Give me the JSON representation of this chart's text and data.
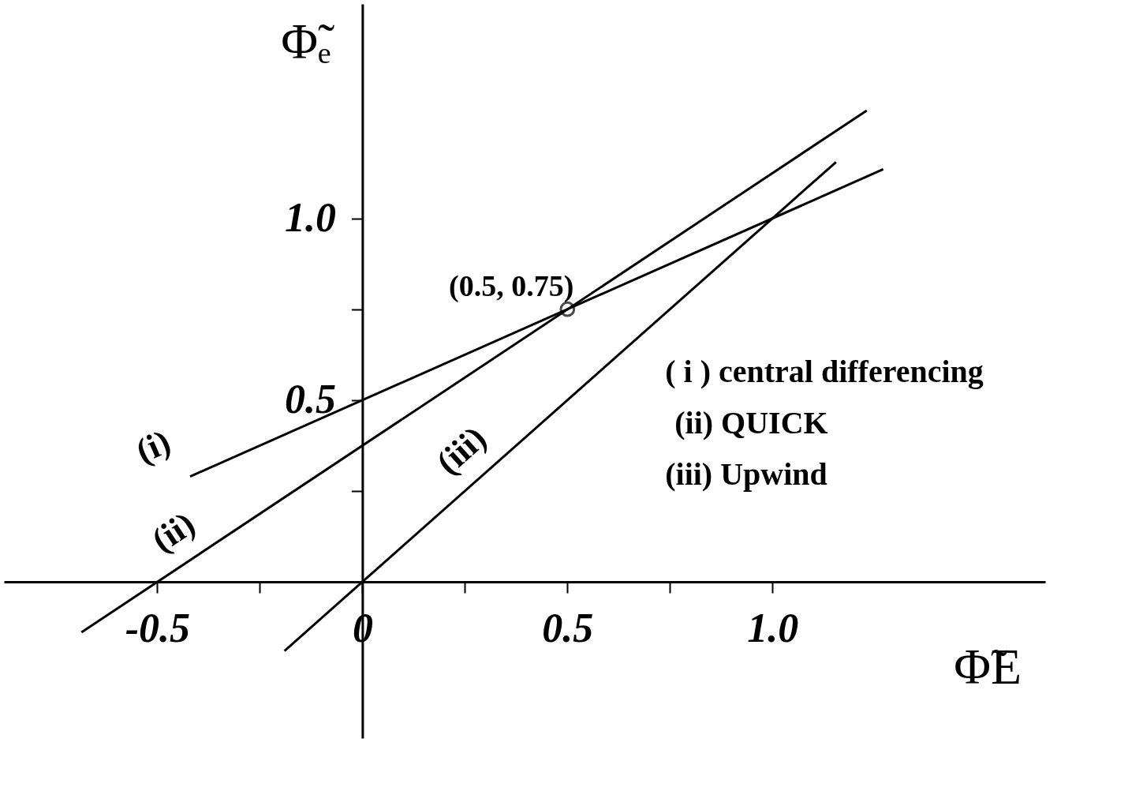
{
  "chart_data": {
    "type": "line",
    "xlabel": "Φ̃E",
    "ylabel": "Φ̃ₑ",
    "xlim": [
      -0.874,
      1.665
    ],
    "ylim": [
      -0.43,
      1.59
    ],
    "xticks": [
      -0.5,
      {
        "value": -0.25,
        "label": null
      },
      0,
      {
        "value": 0.25,
        "label": null
      },
      0.5,
      {
        "value": 0.75,
        "label": null
      },
      {
        "value": 1,
        "label": "1.0"
      }
    ],
    "yticks": [
      {
        "value": 0.25,
        "label": null
      },
      0.5,
      {
        "value": 0.75,
        "label": null
      },
      {
        "value": 1,
        "label": "1.0"
      }
    ],
    "series": [
      {
        "name": "(i)",
        "color": "#000000",
        "x": [
          -0.42,
          1.27
        ],
        "values": [
          0.29,
          1.135
        ]
      },
      {
        "name": "(ii)",
        "color": "#000000",
        "x": [
          -0.685,
          1.23
        ],
        "values": [
          -0.139,
          1.297
        ]
      },
      {
        "name": "(iii)",
        "color": "#000000",
        "x": [
          -0.19,
          1.155
        ],
        "values": [
          -0.19,
          1.155
        ]
      }
    ],
    "annotations": [
      {
        "text": "(0.5, 0.75)",
        "x": 0.5,
        "y": 0.75
      },
      "( i )  central differencing",
      "(ii) QUICK",
      "(iii) Upwind"
    ],
    "grid": false,
    "legend": false,
    "marker": "none",
    "line_style": "solid"
  }
}
